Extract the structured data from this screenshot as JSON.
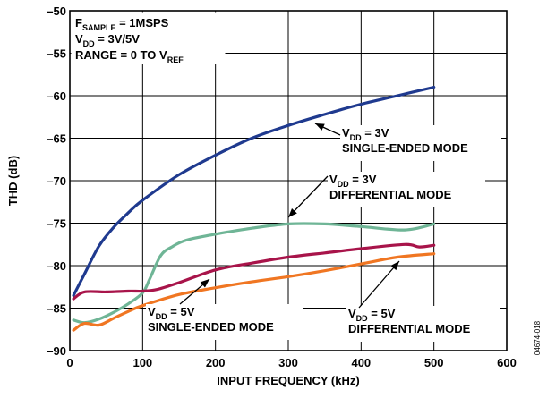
{
  "chart_data": {
    "type": "line",
    "xlabel": "INPUT FREQUENCY (kHz)",
    "ylabel": "THD (dB)",
    "xlim": [
      0,
      600
    ],
    "ylim": [
      -90,
      -50
    ],
    "x_ticks": [
      0,
      100,
      200,
      300,
      400,
      500,
      600
    ],
    "y_ticks": [
      -50,
      -55,
      -60,
      -65,
      -70,
      -75,
      -80,
      -85,
      -90
    ],
    "grid": true,
    "legend_placement": "none",
    "conditions": [
      {
        "main": "F",
        "sub": "SAMPLE",
        "rest": " = 1MSPS"
      },
      {
        "main": "V",
        "sub": "DD",
        "rest": " = 3V/5V"
      },
      {
        "main": "RANGE = 0 TO V",
        "sub": "REF",
        "rest": ""
      }
    ],
    "series": [
      {
        "color": "#1f3a8f",
        "x": [
          5,
          20,
          40,
          60,
          80,
          100,
          150,
          200,
          250,
          300,
          350,
          400,
          450,
          500
        ],
        "y": [
          -83.5,
          -81.0,
          -77.7,
          -75.5,
          -73.8,
          -72.3,
          -69.3,
          -67.0,
          -65.0,
          -63.5,
          -62.2,
          -61.0,
          -60.0,
          -59.0
        ]
      },
      {
        "color": "#6fb596",
        "x": [
          5,
          20,
          40,
          60,
          80,
          100,
          110,
          125,
          140,
          160,
          200,
          250,
          300,
          350,
          400,
          460,
          500
        ],
        "y": [
          -86.4,
          -86.7,
          -86.3,
          -85.5,
          -84.5,
          -83.2,
          -81.5,
          -78.8,
          -77.8,
          -77.0,
          -76.3,
          -75.6,
          -75.1,
          -75.1,
          -75.4,
          -75.8,
          -75.1
        ]
      },
      {
        "color": "#a8144a",
        "x": [
          5,
          20,
          50,
          80,
          100,
          120,
          150,
          200,
          250,
          300,
          350,
          400,
          460,
          480,
          500
        ],
        "y": [
          -83.9,
          -83.1,
          -83.1,
          -83.0,
          -83.0,
          -82.8,
          -82.0,
          -80.5,
          -79.7,
          -79.0,
          -78.5,
          -78.0,
          -77.5,
          -77.8,
          -77.6
        ]
      },
      {
        "color": "#f07622",
        "x": [
          5,
          20,
          40,
          60,
          80,
          100,
          150,
          200,
          250,
          300,
          350,
          400,
          450,
          500
        ],
        "y": [
          -87.6,
          -86.8,
          -87.0,
          -86.2,
          -85.4,
          -84.7,
          -83.4,
          -82.6,
          -81.9,
          -81.3,
          -80.6,
          -79.8,
          -79.0,
          -78.6
        ]
      }
    ],
    "annotations": [
      {
        "line1_main": "V",
        "line1_sub": "DD",
        "line1_rest": " = 3V",
        "line2": "SINGLE-ENDED MODE"
      },
      {
        "line1_main": "V",
        "line1_sub": "DD",
        "line1_rest": " = 3V",
        "line2": "DIFFERENTIAL MODE"
      },
      {
        "line1_main": "V",
        "line1_sub": "DD",
        "line1_rest": " = 5V",
        "line2": "SINGLE-ENDED MODE"
      },
      {
        "line1_main": "V",
        "line1_sub": "DD",
        "line1_rest": " = 5V",
        "line2": "DIFFERENTIAL MODE"
      }
    ],
    "figure_id": "04674-018"
  }
}
